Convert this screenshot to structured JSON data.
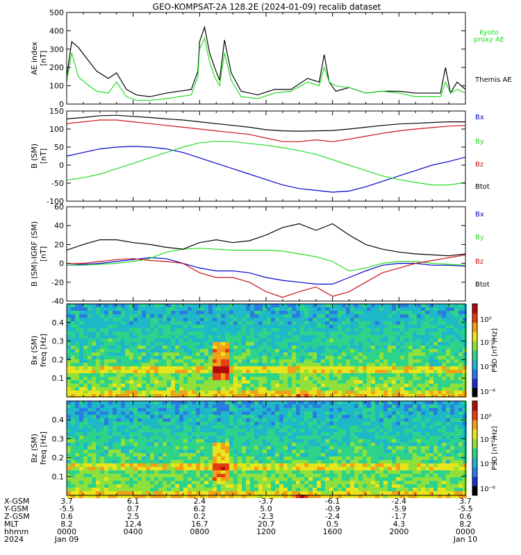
{
  "title": "GEO-KOMPSAT-2A 128.2E (2024-01-09) recalib dataset",
  "colors": {
    "black": "#000000",
    "green": "#22dd22",
    "blue": "#0000cc",
    "red": "#cc1111",
    "kyoto": "#22dd22"
  },
  "chart_data": [
    {
      "type": "line",
      "id": "ae",
      "ylabel": "AE index",
      "yunit": "[nT]",
      "ylim": [
        0,
        500
      ],
      "yticks": [
        0,
        100,
        200,
        300,
        400,
        500
      ],
      "x_hours": [
        0,
        24
      ],
      "legend": [
        {
          "name": "Kyoto proxy AE",
          "color": "green"
        },
        {
          "name": "Themis AE",
          "color": "black"
        }
      ],
      "series": [
        {
          "name": "Themis AE",
          "color": "black",
          "x": [
            0,
            0.3,
            0.7,
            1.2,
            1.8,
            2.5,
            3,
            3.6,
            4.2,
            5,
            6,
            7.5,
            7.9,
            8,
            8.3,
            8.6,
            8.9,
            9.2,
            9.5,
            9.9,
            10.5,
            11.5,
            12.5,
            13.5,
            14.5,
            15.2,
            15.5,
            15.8,
            16.2,
            17,
            18,
            19,
            20,
            21,
            22,
            22.5,
            22.8,
            23.1,
            23.5,
            24
          ],
          "y": [
            150,
            340,
            310,
            250,
            180,
            140,
            170,
            80,
            50,
            40,
            60,
            80,
            180,
            340,
            420,
            280,
            200,
            130,
            350,
            170,
            70,
            50,
            80,
            80,
            140,
            120,
            270,
            120,
            70,
            90,
            60,
            70,
            70,
            60,
            60,
            60,
            200,
            60,
            120,
            80
          ]
        },
        {
          "name": "Kyoto proxy AE",
          "color": "green",
          "x": [
            0,
            0.3,
            0.7,
            1.2,
            1.8,
            2.5,
            3,
            3.6,
            4.2,
            5,
            6,
            7.5,
            7.9,
            8,
            8.3,
            8.6,
            8.9,
            9.2,
            9.5,
            9.9,
            10.5,
            11.5,
            12.5,
            13.5,
            14.5,
            15.2,
            15.5,
            15.8,
            16.2,
            17,
            18,
            19,
            20,
            21,
            22,
            22.5,
            22.8,
            23.1,
            23.5,
            24
          ],
          "y": [
            120,
            280,
            150,
            110,
            70,
            60,
            120,
            40,
            20,
            20,
            30,
            50,
            150,
            300,
            360,
            230,
            150,
            100,
            280,
            130,
            40,
            30,
            60,
            70,
            120,
            100,
            200,
            120,
            100,
            90,
            60,
            70,
            60,
            40,
            40,
            40,
            120,
            60,
            80,
            60
          ]
        }
      ]
    },
    {
      "type": "line",
      "id": "bsm",
      "ylabel": "B (SM)",
      "yunit": "[nT]",
      "ylim": [
        -100,
        150
      ],
      "yticks": [
        -100,
        -50,
        0,
        50,
        100,
        150
      ],
      "x_hours": [
        0,
        24
      ],
      "legend": [
        {
          "name": "Bx",
          "color": "blue"
        },
        {
          "name": "By",
          "color": "green"
        },
        {
          "name": "Bz",
          "color": "red"
        },
        {
          "name": "Btot",
          "color": "black"
        }
      ],
      "series": [
        {
          "name": "Bx",
          "color": "blue",
          "x": [
            0,
            1,
            2,
            3,
            4,
            5,
            6,
            7,
            8,
            9,
            10,
            11,
            12,
            13,
            14,
            15,
            16,
            17,
            18,
            19,
            20,
            21,
            22,
            23,
            24
          ],
          "y": [
            25,
            35,
            45,
            50,
            52,
            50,
            45,
            35,
            20,
            5,
            -10,
            -25,
            -40,
            -55,
            -65,
            -70,
            -75,
            -72,
            -60,
            -45,
            -30,
            -15,
            0,
            10,
            22
          ]
        },
        {
          "name": "By",
          "color": "green",
          "x": [
            0,
            1,
            2,
            3,
            4,
            5,
            6,
            7,
            8,
            9,
            10,
            11,
            12,
            13,
            14,
            15,
            16,
            17,
            18,
            19,
            20,
            21,
            22,
            23,
            24
          ],
          "y": [
            -42,
            -35,
            -25,
            -10,
            5,
            20,
            35,
            50,
            62,
            66,
            65,
            60,
            55,
            48,
            40,
            30,
            15,
            0,
            -15,
            -30,
            -40,
            -48,
            -55,
            -55,
            -48
          ]
        },
        {
          "name": "Bz",
          "color": "red",
          "x": [
            0,
            1,
            2,
            3,
            4,
            5,
            6,
            7,
            8,
            9,
            10,
            11,
            12,
            13,
            14,
            15,
            16,
            17,
            18,
            19,
            20,
            21,
            22,
            23,
            24
          ],
          "y": [
            115,
            120,
            125,
            125,
            120,
            115,
            110,
            105,
            100,
            95,
            90,
            85,
            75,
            65,
            65,
            70,
            65,
            72,
            80,
            88,
            95,
            100,
            104,
            108,
            110
          ]
        },
        {
          "name": "Btot",
          "color": "black",
          "x": [
            0,
            1,
            2,
            3,
            4,
            5,
            6,
            7,
            8,
            9,
            10,
            11,
            12,
            13,
            14,
            15,
            16,
            17,
            18,
            19,
            20,
            21,
            22,
            23,
            24
          ],
          "y": [
            128,
            132,
            137,
            138,
            135,
            132,
            128,
            125,
            120,
            115,
            110,
            105,
            98,
            95,
            94,
            95,
            96,
            100,
            105,
            110,
            114,
            116,
            118,
            120,
            120
          ]
        }
      ]
    },
    {
      "type": "line",
      "id": "bres",
      "ylabel": "B (SM)-IGRF (SM)",
      "yunit": "[nT]",
      "ylim": [
        -40,
        60
      ],
      "yticks": [
        -40,
        -20,
        0,
        20,
        40,
        60
      ],
      "x_hours": [
        0,
        24
      ],
      "legend": [
        {
          "name": "Bx",
          "color": "blue"
        },
        {
          "name": "By",
          "color": "green"
        },
        {
          "name": "Bz",
          "color": "red"
        },
        {
          "name": "Btot",
          "color": "black"
        }
      ],
      "series": [
        {
          "name": "Bx",
          "color": "blue",
          "x": [
            0,
            1,
            2,
            3,
            4,
            5,
            6,
            7,
            8,
            9,
            10,
            11,
            12,
            13,
            14,
            15,
            16,
            17,
            18,
            19,
            20,
            21,
            22,
            23,
            24
          ],
          "y": [
            -2,
            -1,
            0,
            2,
            4,
            6,
            5,
            0,
            -5,
            -8,
            -8,
            -10,
            -15,
            -18,
            -20,
            -22,
            -22,
            -15,
            -8,
            -2,
            0,
            0,
            -2,
            -2,
            -3
          ]
        },
        {
          "name": "By",
          "color": "green",
          "x": [
            0,
            1,
            2,
            3,
            4,
            5,
            6,
            7,
            8,
            9,
            10,
            11,
            12,
            13,
            14,
            15,
            16,
            17,
            18,
            19,
            20,
            21,
            22,
            23,
            24
          ],
          "y": [
            -2,
            -2,
            -1,
            0,
            2,
            5,
            12,
            15,
            16,
            15,
            14,
            14,
            14,
            13,
            10,
            7,
            2,
            -8,
            -5,
            0,
            2,
            2,
            0,
            -1,
            -2
          ]
        },
        {
          "name": "Bz",
          "color": "red",
          "x": [
            0,
            1,
            2,
            3,
            4,
            5,
            6,
            7,
            8,
            9,
            10,
            11,
            12,
            13,
            14,
            15,
            16,
            17,
            18,
            19,
            20,
            21,
            22,
            23,
            24
          ],
          "y": [
            0,
            0,
            2,
            4,
            5,
            3,
            2,
            0,
            -10,
            -15,
            -15,
            -20,
            -30,
            -36,
            -30,
            -25,
            -35,
            -30,
            -20,
            -10,
            -5,
            0,
            3,
            6,
            9
          ]
        },
        {
          "name": "Btot",
          "color": "black",
          "x": [
            0,
            1,
            2,
            3,
            4,
            5,
            6,
            7,
            8,
            9,
            10,
            11,
            12,
            13,
            14,
            15,
            16,
            17,
            18,
            19,
            20,
            21,
            22,
            23,
            24
          ],
          "y": [
            14,
            20,
            25,
            25,
            22,
            20,
            17,
            15,
            22,
            25,
            22,
            24,
            30,
            38,
            42,
            35,
            42,
            30,
            20,
            15,
            12,
            10,
            9,
            8,
            10
          ]
        }
      ]
    },
    {
      "type": "heatmap",
      "id": "specbx",
      "ylabel": "Bx (SM)",
      "yunit": "freq [Hz]",
      "ylim": [
        0,
        0.5
      ],
      "yticks": [
        0.1,
        0.2,
        0.3,
        0.4
      ],
      "x_hours": [
        0,
        24
      ],
      "colorbar": {
        "label": "PSD [nT²/Hz]",
        "ticks": [
          "10⁰",
          "10⁻²",
          "10⁻⁴",
          "10⁻⁶"
        ]
      }
    },
    {
      "type": "heatmap",
      "id": "specbz",
      "ylabel": "Bz (SM)",
      "yunit": "freq [Hz]",
      "ylim": [
        0,
        0.5
      ],
      "yticks": [
        0.1,
        0.2,
        0.3,
        0.4
      ],
      "x_hours": [
        0,
        24
      ],
      "colorbar": {
        "label": "PSD [nT²/Hz]",
        "ticks": [
          "10⁰",
          "10⁻²",
          "10⁻⁴",
          "10⁻⁶"
        ]
      }
    }
  ],
  "ephemeris": {
    "row_labels": [
      "X-GSM",
      "Y-GSM",
      "Z-GSM",
      "MLT",
      "hhmm",
      "2024"
    ],
    "columns": [
      {
        "hour": 0,
        "values": [
          "3.7",
          "-5.5",
          "0.6",
          "8.2",
          "0000",
          "Jan 09"
        ]
      },
      {
        "hour": 4,
        "values": [
          "6.1",
          "0.7",
          "2.5",
          "12.4",
          "0400",
          ""
        ]
      },
      {
        "hour": 8,
        "values": [
          "2.4",
          "6.2",
          "0.2",
          "16.7",
          "0800",
          ""
        ]
      },
      {
        "hour": 12,
        "values": [
          "-3.7",
          "5.0",
          "-2.3",
          "20.7",
          "1200",
          ""
        ]
      },
      {
        "hour": 16,
        "values": [
          "-6.1",
          "-0.9",
          "-2.4",
          "0.5",
          "1600",
          ""
        ]
      },
      {
        "hour": 20,
        "values": [
          "-2.4",
          "-5.9",
          "-1.7",
          "4.3",
          "2000",
          ""
        ]
      },
      {
        "hour": 24,
        "values": [
          "3.7",
          "-5.5",
          "0.6",
          "8.2",
          "0000",
          "Jan 10"
        ]
      }
    ]
  }
}
